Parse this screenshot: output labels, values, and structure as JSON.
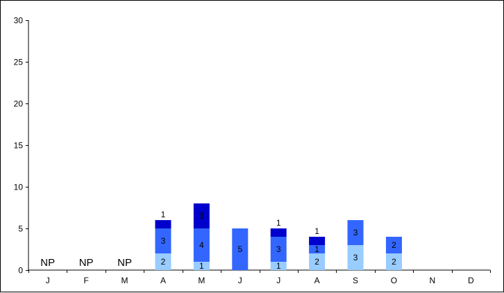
{
  "chart_data": {
    "type": "bar",
    "stacked": true,
    "categories": [
      "J",
      "F",
      "M",
      "A",
      "M",
      "J",
      "J",
      "A",
      "S",
      "O",
      "N",
      "D"
    ],
    "ylim": [
      0,
      30
    ],
    "yticks": [
      0,
      5,
      10,
      15,
      20,
      25,
      30
    ],
    "grid": false,
    "legend": false,
    "title": "",
    "xlabel": "",
    "ylabel": "",
    "series": [
      {
        "color": "#99ccff",
        "values": [
          null,
          null,
          null,
          2,
          1,
          0,
          1,
          2,
          3,
          2,
          0,
          0
        ]
      },
      {
        "color": "#3366ff",
        "values": [
          null,
          null,
          null,
          3,
          4,
          5,
          3,
          1,
          3,
          2,
          0,
          0
        ]
      },
      {
        "color": "#0000cc",
        "values": [
          null,
          null,
          null,
          1,
          3,
          0,
          1,
          1,
          0,
          0,
          0,
          0
        ]
      }
    ],
    "annotations": [
      {
        "category_index": 0,
        "text": "NP"
      },
      {
        "category_index": 1,
        "text": "NP"
      },
      {
        "category_index": 2,
        "text": "NP"
      }
    ]
  }
}
